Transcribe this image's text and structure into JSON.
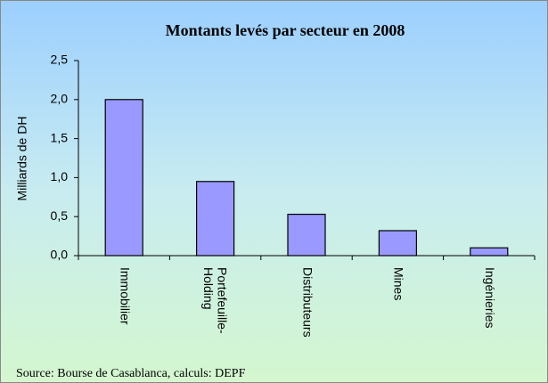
{
  "chart_data": {
    "type": "bar",
    "title": "Montants levés par secteur en 2008",
    "y_label": "Milliards de DH",
    "categories": [
      "Immobilier",
      "Portefeuille-Holding",
      "Distributeurs",
      "Mines",
      "Ingénieries"
    ],
    "values": [
      2.0,
      0.95,
      0.53,
      0.32,
      0.1
    ],
    "color": "#9999ff",
    "ylim": [
      0,
      2.5
    ],
    "yticks": [
      {
        "value": 0,
        "label": "0,0"
      },
      {
        "value": 0.5,
        "label": "0,5"
      },
      {
        "value": 1,
        "label": "1,0"
      },
      {
        "value": 1.5,
        "label": "1,5"
      },
      {
        "value": 2,
        "label": "2,0"
      },
      {
        "value": 2.5,
        "label": "2,5"
      }
    ],
    "grid": false,
    "source": "Source: Bourse de Casablanca, calculs: DEPF"
  }
}
